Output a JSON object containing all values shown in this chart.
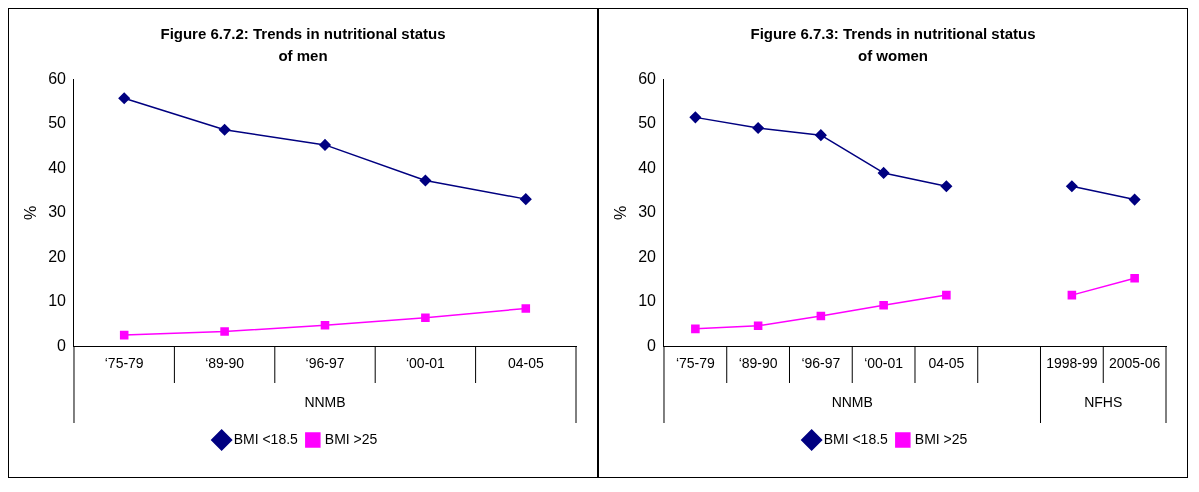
{
  "chart_data": [
    {
      "type": "line",
      "title": "Figure 6.7.2: Trends in nutritional status of men",
      "ylabel": "%",
      "categories": [
        "‘75-79",
        "‘89-90",
        "‘96-97",
        "‘00-01",
        "04-05"
      ],
      "series": [
        {
          "name": "BMI <18.5",
          "color": "#000080",
          "marker": "diamond",
          "values": [
            55.8,
            48.7,
            45.3,
            37.3,
            33.1
          ]
        },
        {
          "name": "BMI >25",
          "color": "#ff00ff",
          "marker": "square",
          "values": [
            2.5,
            3.3,
            4.7,
            6.4,
            8.5
          ]
        }
      ],
      "ylim": [
        0,
        60
      ],
      "yticks": [
        0,
        10,
        20,
        30,
        40,
        50,
        60
      ],
      "legend": "bottom",
      "annotations": [
        "NNMB"
      ]
    },
    {
      "type": "line",
      "title": "Figure 6.7.3: Trends in nutritional status of women",
      "ylabel": "%",
      "categories": [
        "‘75-79",
        "‘89-90",
        "‘96-97",
        "‘00-01",
        "04-05",
        null,
        "1998-99",
        "2005-06"
      ],
      "series": [
        {
          "name": "BMI <18.5",
          "color": "#000080",
          "marker": "diamond",
          "values": [
            51.5,
            49.1,
            47.5,
            39.0,
            36.0,
            null,
            36.0,
            33.0
          ]
        },
        {
          "name": "BMI >25",
          "color": "#ff00ff",
          "marker": "square",
          "values": [
            3.9,
            4.6,
            6.8,
            9.2,
            11.5,
            null,
            11.5,
            15.3
          ]
        }
      ],
      "ylim": [
        0,
        60
      ],
      "yticks": [
        0,
        10,
        20,
        30,
        40,
        50,
        60
      ],
      "legend": "bottom",
      "annotations": [
        "NNMB",
        "NFHS"
      ]
    }
  ]
}
